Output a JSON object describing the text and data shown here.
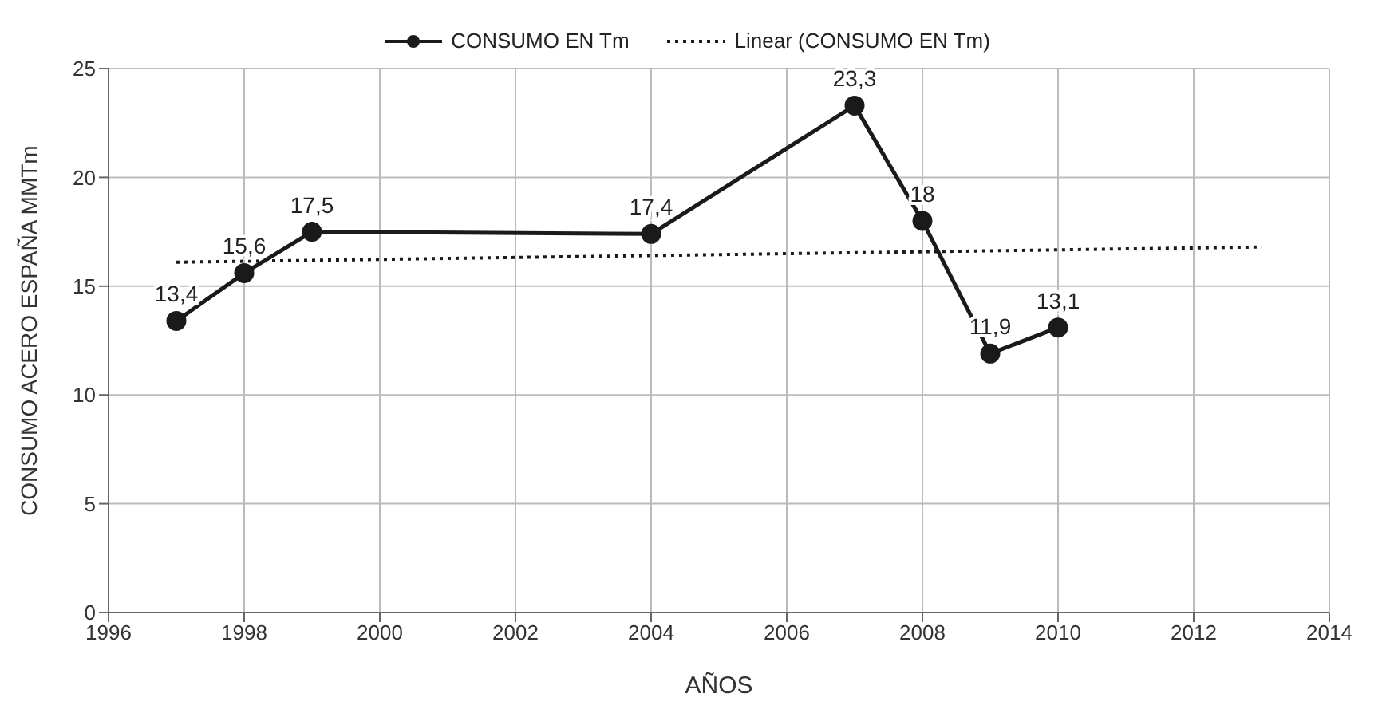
{
  "chart_data": {
    "type": "line",
    "xlabel": "AÑOS",
    "ylabel": "CONSUMO ACERO ESPAÑA MMTm",
    "xlim": [
      1996,
      2014
    ],
    "xticks": [
      1996,
      1998,
      2000,
      2002,
      2004,
      2006,
      2008,
      2010,
      2012,
      2014
    ],
    "ylim": [
      0,
      25
    ],
    "yticks": [
      0,
      5,
      10,
      15,
      20,
      25
    ],
    "grid": true,
    "legend": "top",
    "series": [
      {
        "name": "CONSUMO EN Tm",
        "color": "#1a1a1a",
        "marker": "circle",
        "line_style": "solid",
        "x": [
          1997,
          1998,
          1999,
          2004,
          2007,
          2008,
          2009,
          2010
        ],
        "values": [
          13.4,
          15.6,
          17.5,
          17.4,
          23.3,
          18,
          11.9,
          13.1
        ],
        "value_labels": [
          "13,4",
          "15,6",
          "17,5",
          "17,4",
          "23,3",
          "18",
          "11,9",
          "13,1"
        ]
      },
      {
        "name": "Linear (CONSUMO EN Tm)",
        "type": "line",
        "color": "#1a1a1a",
        "marker": "none",
        "line_style": "dotted",
        "x": [
          1997,
          2013
        ],
        "values": [
          16.1,
          16.8
        ]
      }
    ]
  }
}
